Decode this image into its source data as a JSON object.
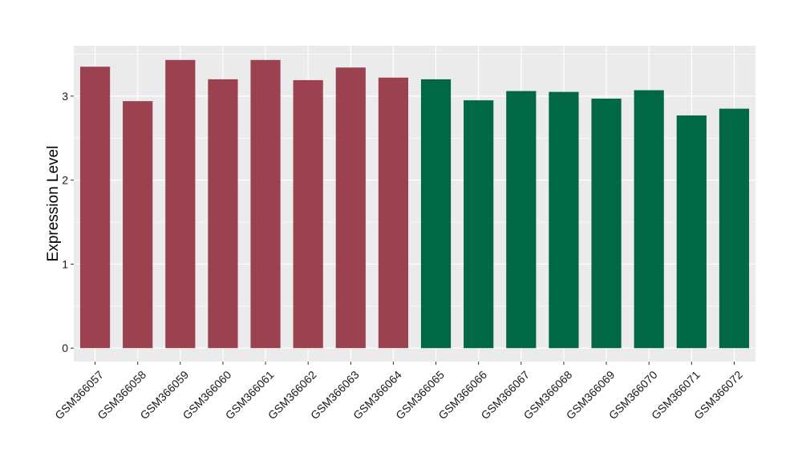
{
  "chart_data": {
    "type": "bar",
    "ylabel": "Expression Level",
    "ylim": [
      -0.16,
      3.6
    ],
    "yticks": [
      0,
      1,
      2,
      3
    ],
    "grid": true,
    "categories": [
      "GSM366057",
      "GSM366058",
      "GSM366059",
      "GSM366060",
      "GSM366061",
      "GSM366062",
      "GSM366063",
      "GSM366064",
      "GSM366065",
      "GSM366066",
      "GSM366067",
      "GSM366068",
      "GSM366069",
      "GSM366070",
      "GSM366071",
      "GSM366072"
    ],
    "values": [
      3.35,
      2.94,
      3.43,
      3.2,
      3.43,
      3.19,
      3.34,
      3.22,
      3.2,
      2.95,
      3.06,
      3.05,
      2.97,
      3.07,
      2.77,
      2.85
    ],
    "group_colors": [
      "#9b4150",
      "#9b4150",
      "#9b4150",
      "#9b4150",
      "#9b4150",
      "#9b4150",
      "#9b4150",
      "#9b4150",
      "#006845",
      "#006845",
      "#006845",
      "#006845",
      "#006845",
      "#006845",
      "#006845",
      "#006845"
    ],
    "panel_color": "#ebebeb",
    "grid_color": "#ffffff"
  }
}
